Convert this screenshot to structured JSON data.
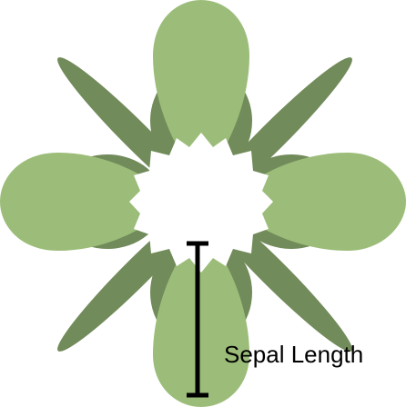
{
  "diagram": {
    "measurement_label": "Sepal Length",
    "colors": {
      "petal": "#9cbd79",
      "sepal": "#718b5a",
      "center": "#ffffff",
      "measure_line": "#000000",
      "background": "#ffffff"
    }
  }
}
